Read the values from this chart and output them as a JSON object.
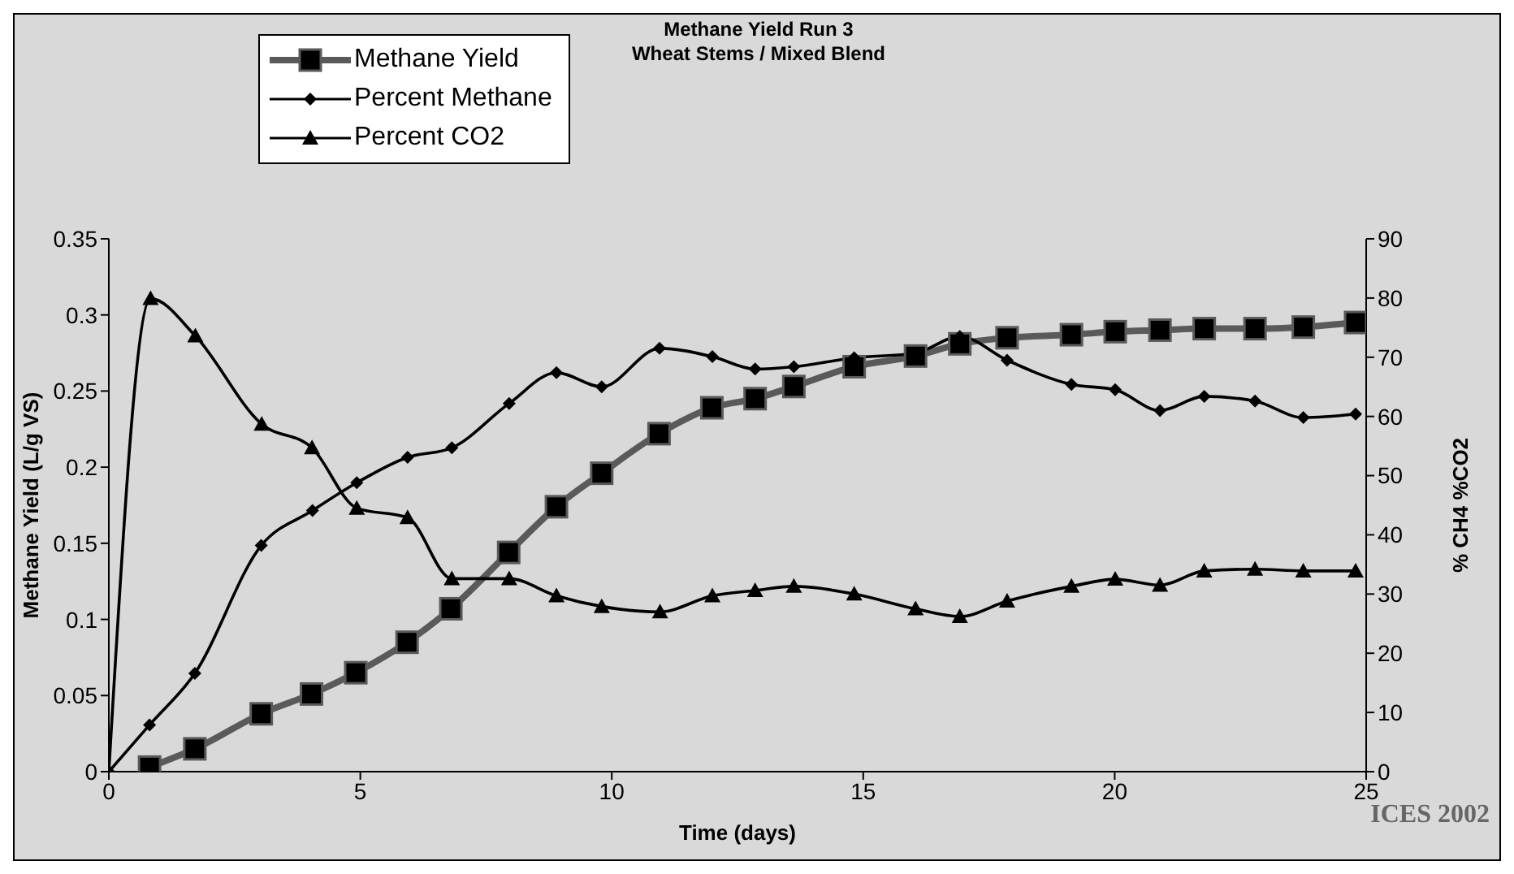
{
  "chart_data": {
    "type": "line",
    "title": "Methane Yield Run 3",
    "subtitle": "Wheat Stems / Mixed Blend",
    "xlabel": "Time (days)",
    "ylabel": "Methane Yield (L/g VS)",
    "y2label": "% CH4   %CO2",
    "xlim": [
      0,
      25
    ],
    "xticks": [
      0,
      5,
      10,
      15,
      20,
      25
    ],
    "ylim": [
      0,
      0.35
    ],
    "yticks": [
      0,
      0.05,
      0.1,
      0.15,
      0.2,
      0.25,
      0.3,
      0.35
    ],
    "y2lim": [
      0,
      90
    ],
    "y2ticks": [
      0,
      10,
      20,
      30,
      40,
      50,
      60,
      70,
      80,
      90
    ],
    "grid": false,
    "legend": "top left",
    "annotations": [
      "ICES 2002"
    ],
    "series": [
      {
        "name": "Methane Yield",
        "color": "#5a5a5a",
        "marker": "square",
        "x": [
          0.81,
          1.71,
          3.03,
          4.03,
          4.91,
          5.93,
          6.8,
          7.95,
          8.9,
          9.8,
          10.94,
          11.99,
          12.85,
          13.62,
          14.82,
          16.04,
          16.92,
          17.86,
          19.14,
          20.01,
          20.9,
          21.78,
          22.79,
          23.75,
          24.79
        ],
        "values": [
          0.003,
          0.015,
          0.038,
          0.051,
          0.065,
          0.085,
          0.107,
          0.144,
          0.174,
          0.196,
          0.222,
          0.239,
          0.245,
          0.253,
          0.266,
          0.273,
          0.281,
          0.285,
          0.287,
          0.289,
          0.29,
          0.291,
          0.291,
          0.292,
          0.295
        ]
      },
      {
        "name": "Percent Methane",
        "color": "#000000",
        "marker": "diamond",
        "axis": "y2",
        "x": [
          0,
          0.81,
          1.71,
          3.03,
          4.05,
          4.93,
          5.94,
          6.82,
          7.96,
          8.9,
          9.8,
          10.95,
          12.0,
          12.85,
          13.62,
          14.82,
          16.04,
          16.92,
          17.86,
          19.14,
          20.01,
          20.9,
          21.78,
          22.79,
          23.75,
          24.79
        ],
        "values": [
          0,
          7.9,
          16.6,
          38.2,
          44.1,
          48.8,
          53.1,
          54.7,
          62.2,
          67.4,
          65.0,
          71.5,
          70.1,
          68.0,
          68.4,
          69.9,
          70.7,
          73.5,
          69.5,
          65.4,
          64.5,
          61.0,
          63.4,
          62.6,
          59.8,
          60.4
        ]
      },
      {
        "name": "Percent CO2",
        "color": "#000000",
        "marker": "triangle",
        "axis": "y2",
        "x": [
          0,
          0.83,
          1.72,
          3.04,
          4.04,
          4.93,
          5.94,
          6.82,
          7.96,
          8.9,
          9.8,
          10.96,
          12.0,
          12.85,
          13.62,
          14.82,
          16.04,
          16.92,
          17.86,
          19.14,
          20.01,
          20.9,
          21.78,
          22.79,
          23.75,
          24.79
        ],
        "values": [
          0,
          79.9,
          73.6,
          58.7,
          54.7,
          44.5,
          42.9,
          32.6,
          32.6,
          29.7,
          27.9,
          27.0,
          29.7,
          30.6,
          31.3,
          30.0,
          27.5,
          26.2,
          28.8,
          31.3,
          32.5,
          31.5,
          33.9,
          34.2,
          33.9,
          33.9
        ]
      }
    ]
  }
}
